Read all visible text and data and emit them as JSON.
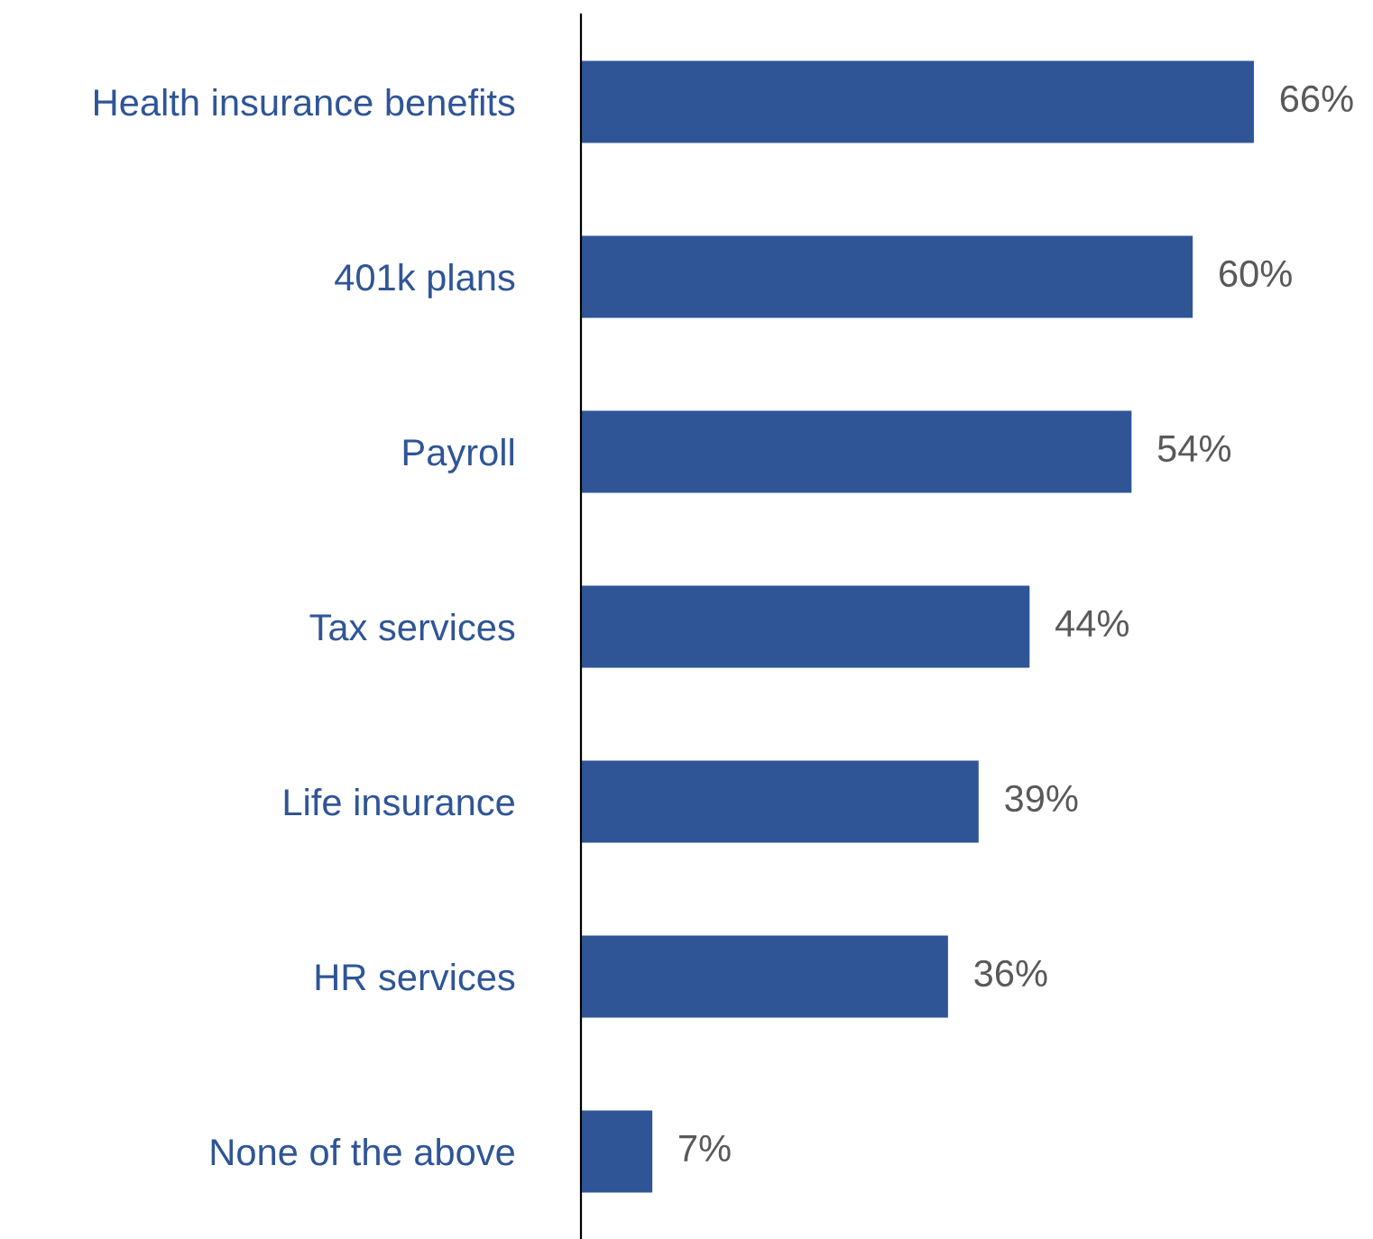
{
  "chart_data": {
    "type": "bar",
    "orientation": "horizontal",
    "categories": [
      "Health insurance benefits",
      "401k plans",
      "Payroll",
      "Tax services",
      "Life insurance",
      "HR services",
      "None of the above"
    ],
    "values": [
      66,
      60,
      54,
      44,
      39,
      36,
      7
    ],
    "value_labels": [
      "66%",
      "60%",
      "54%",
      "44%",
      "39%",
      "36%",
      "7%"
    ],
    "color": "#2f5597",
    "grid": false,
    "legend": false
  }
}
